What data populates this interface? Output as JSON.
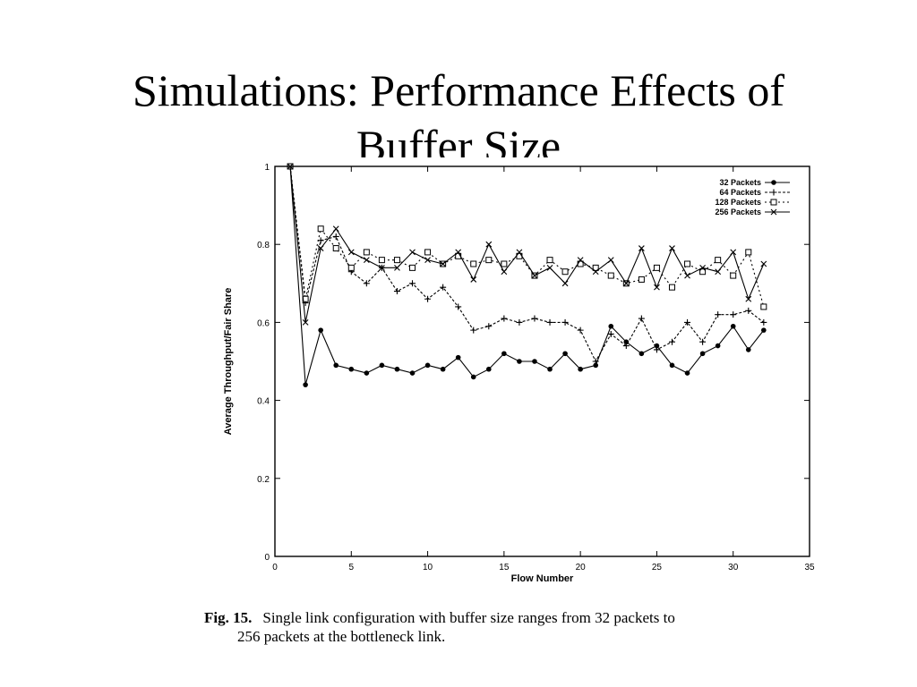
{
  "slide": {
    "title_line1": "Simulations: Performance Effects of",
    "title_line2": "Buffer Size"
  },
  "caption": {
    "fig_label": "Fig. 15.",
    "line1": "Single link configuration with buffer size ranges from 32 packets to",
    "line2": "256 packets at the bottleneck link."
  },
  "chart_data": {
    "type": "line",
    "title": "",
    "xlabel": "Flow Number",
    "ylabel": "Average Throughput/Fair Share",
    "xlim": [
      0,
      35
    ],
    "ylim": [
      0,
      1
    ],
    "xticks": [
      0,
      5,
      10,
      15,
      20,
      25,
      30,
      35
    ],
    "xtick_labels": [
      "0",
      "5",
      "10",
      "15",
      "20",
      "25",
      "30",
      "35"
    ],
    "yticks": [
      0,
      0.2,
      0.4,
      0.6,
      0.8,
      1
    ],
    "ytick_labels": [
      "0",
      "0.2",
      "0.4",
      "0.6",
      "0.8",
      "1"
    ],
    "legend_position": "top-right",
    "x": [
      1,
      2,
      3,
      4,
      5,
      6,
      7,
      8,
      9,
      10,
      11,
      12,
      13,
      14,
      15,
      16,
      17,
      18,
      19,
      20,
      21,
      22,
      23,
      24,
      25,
      26,
      27,
      28,
      29,
      30,
      31,
      32
    ],
    "series": [
      {
        "name": "32 Packets",
        "marker": "filled-circle",
        "values": [
          1.0,
          0.44,
          0.58,
          0.49,
          0.48,
          0.47,
          0.49,
          0.48,
          0.47,
          0.49,
          0.48,
          0.51,
          0.46,
          0.48,
          0.52,
          0.5,
          0.5,
          0.48,
          0.52,
          0.48,
          0.49,
          0.59,
          0.55,
          0.52,
          0.54,
          0.49,
          0.47,
          0.52,
          0.54,
          0.59,
          0.53,
          0.58
        ]
      },
      {
        "name": "64 Packets",
        "marker": "plus",
        "values": [
          1.0,
          0.65,
          0.81,
          0.82,
          0.73,
          0.7,
          0.74,
          0.68,
          0.7,
          0.66,
          0.69,
          0.64,
          0.58,
          0.59,
          0.61,
          0.6,
          0.61,
          0.6,
          0.6,
          0.58,
          0.5,
          0.57,
          0.54,
          0.61,
          0.53,
          0.55,
          0.6,
          0.55,
          0.62,
          0.62,
          0.63,
          0.6
        ]
      },
      {
        "name": "128 Packets",
        "marker": "open-square",
        "values": [
          1.0,
          0.66,
          0.84,
          0.79,
          0.74,
          0.78,
          0.76,
          0.76,
          0.74,
          0.78,
          0.75,
          0.77,
          0.75,
          0.76,
          0.75,
          0.77,
          0.72,
          0.76,
          0.73,
          0.75,
          0.74,
          0.72,
          0.7,
          0.71,
          0.74,
          0.69,
          0.75,
          0.73,
          0.76,
          0.72,
          0.78,
          0.64
        ]
      },
      {
        "name": "256 Packets",
        "marker": "cross",
        "values": [
          1.0,
          0.6,
          0.79,
          0.84,
          0.78,
          0.76,
          0.74,
          0.74,
          0.78,
          0.76,
          0.75,
          0.78,
          0.71,
          0.8,
          0.73,
          0.78,
          0.72,
          0.74,
          0.7,
          0.76,
          0.73,
          0.76,
          0.7,
          0.79,
          0.69,
          0.79,
          0.72,
          0.74,
          0.73,
          0.78,
          0.66,
          0.75
        ]
      }
    ]
  }
}
